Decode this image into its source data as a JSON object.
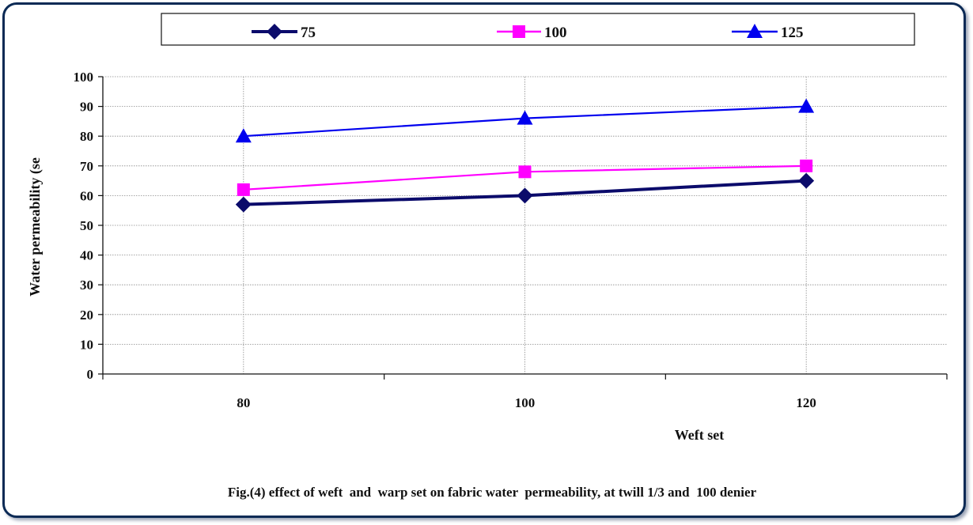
{
  "chart_data": {
    "type": "line",
    "caption": "Fig.(4) effect of weft  and  warp set on fabric water  permeability, at twill 1/3 and  100 denier",
    "xlabel": "Weft set",
    "ylabel": "Water permeability  (se",
    "x": [
      80,
      100,
      120
    ],
    "ylim": [
      0,
      100
    ],
    "yticks": [
      0,
      10,
      20,
      30,
      40,
      50,
      60,
      70,
      80,
      90,
      100
    ],
    "grid": true,
    "legend_position": "top",
    "series": [
      {
        "name": "75",
        "values": [
          57,
          60,
          65
        ],
        "color": "#0b0b6b",
        "marker": "diamond"
      },
      {
        "name": "100",
        "values": [
          62,
          68,
          70
        ],
        "color": "#ff00ff",
        "marker": "square"
      },
      {
        "name": "125",
        "values": [
          80,
          86,
          90
        ],
        "color": "#0000ee",
        "marker": "triangle"
      }
    ]
  }
}
